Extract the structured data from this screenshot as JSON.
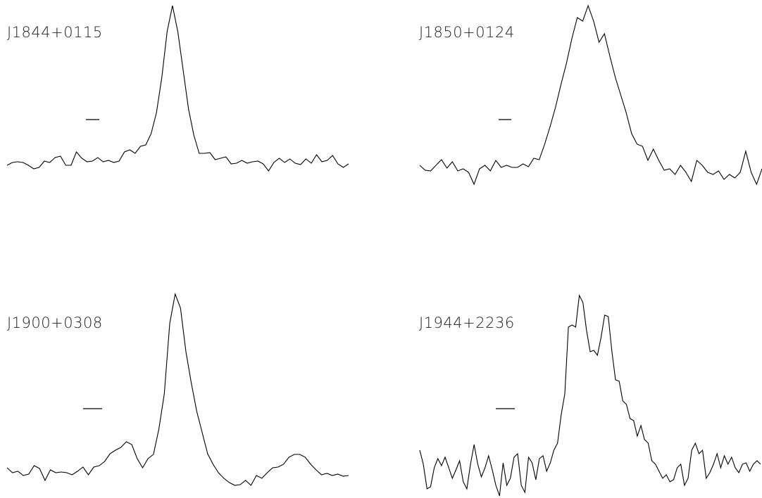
{
  "chart_data": [
    {
      "type": "line",
      "title": "J1844+0115",
      "color": "#000000",
      "values": [
        5,
        9,
        10,
        9,
        5,
        0,
        2,
        11,
        9,
        16,
        18,
        5,
        5,
        24,
        15,
        10,
        11,
        16,
        10,
        12,
        9,
        11,
        24,
        27,
        22,
        32,
        34,
        50,
        80,
        130,
        195,
        232,
        195,
        140,
        85,
        48,
        22,
        22,
        23,
        13,
        15,
        17,
        7,
        8,
        12,
        8,
        10,
        11,
        7,
        -3,
        9,
        15,
        9,
        14,
        8,
        6,
        14,
        8,
        20,
        10,
        12,
        19,
        7,
        2,
        7
      ]
    },
    {
      "type": "line",
      "title": "J1850+0124",
      "color": "#000000",
      "values": [
        15,
        8,
        7,
        15,
        23,
        11,
        20,
        7,
        10,
        5,
        -12,
        10,
        15,
        7,
        22,
        12,
        15,
        12,
        12,
        17,
        13,
        25,
        23,
        45,
        70,
        98,
        130,
        160,
        195,
        225,
        220,
        242,
        220,
        190,
        202,
        170,
        140,
        115,
        90,
        60,
        45,
        42,
        22,
        38,
        22,
        8,
        10,
        2,
        15,
        5,
        -8,
        22,
        15,
        5,
        2,
        7,
        -5,
        2,
        -3,
        5,
        35,
        5,
        -12,
        10
      ]
    },
    {
      "type": "line",
      "title": "J1900+0308",
      "color": "#000000",
      "values": [
        25,
        18,
        20,
        14,
        16,
        28,
        24,
        7,
        22,
        18,
        19,
        18,
        15,
        20,
        26,
        15,
        26,
        28,
        34,
        45,
        50,
        54,
        62,
        58,
        38,
        25,
        38,
        44,
        80,
        130,
        230,
        272,
        252,
        190,
        145,
        105,
        75,
        45,
        30,
        18,
        10,
        4,
        0,
        1,
        7,
        0,
        14,
        10,
        18,
        25,
        26,
        30,
        40,
        44,
        44,
        40,
        30,
        22,
        15,
        17,
        14,
        16,
        13,
        14
      ]
    },
    {
      "type": "line",
      "title": "J1944+2236",
      "color": "#000000",
      "values": [
        70,
        50,
        15,
        18,
        45,
        58,
        48,
        60,
        45,
        30,
        42,
        55,
        25,
        15,
        50,
        78,
        50,
        32,
        45,
        62,
        42,
        20,
        5,
        52,
        20,
        30,
        60,
        65,
        20,
        10,
        60,
        52,
        28,
        58,
        62,
        40,
        52,
        70,
        80,
        120,
        150,
        245,
        248,
        245,
        290,
        280,
        240,
        210,
        212,
        205,
        230,
        262,
        260,
        210,
        170,
        168,
        140,
        135,
        115,
        112,
        90,
        105,
        85,
        80,
        55,
        50,
        40,
        30,
        35,
        25,
        28,
        45,
        50,
        20,
        30,
        70,
        80,
        65,
        70,
        30,
        38,
        50,
        65,
        45,
        62,
        50,
        60,
        45,
        38,
        50,
        52,
        40,
        50,
        55,
        50
      ]
    }
  ]
}
